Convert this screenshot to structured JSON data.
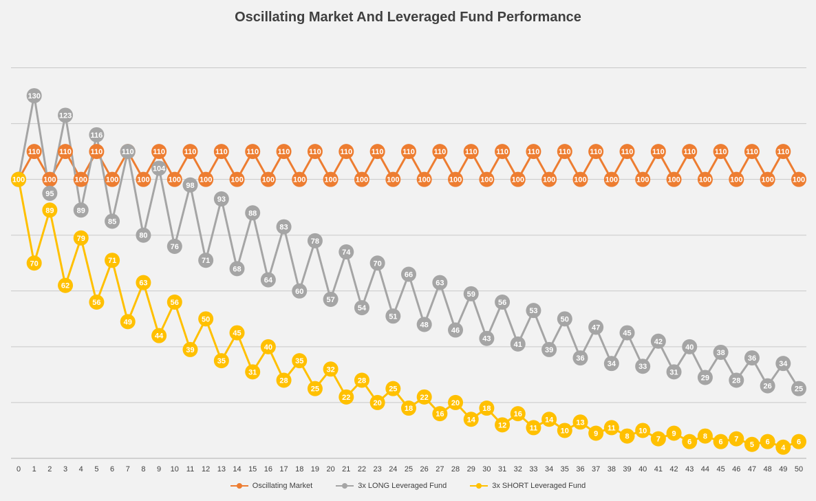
{
  "chart_data": {
    "type": "line",
    "title": "Oscillating Market And Leveraged Fund Performance",
    "xlabel": "",
    "ylabel": "",
    "x": [
      0,
      1,
      2,
      3,
      4,
      5,
      6,
      7,
      8,
      9,
      10,
      11,
      12,
      13,
      14,
      15,
      16,
      17,
      18,
      19,
      20,
      21,
      22,
      23,
      24,
      25,
      26,
      27,
      28,
      29,
      30,
      31,
      32,
      33,
      34,
      35,
      36,
      37,
      38,
      39,
      40,
      41,
      42,
      43,
      44,
      45,
      46,
      47,
      48,
      49,
      50
    ],
    "ylim": [
      0,
      150
    ],
    "grid": true,
    "legend_position": "bottom",
    "series": [
      {
        "name": "Oscillating Market",
        "color": "#ed7d31",
        "values": [
          100,
          110,
          100,
          110,
          100,
          110,
          100,
          110,
          100,
          110,
          100,
          110,
          100,
          110,
          100,
          110,
          100,
          110,
          100,
          110,
          100,
          110,
          100,
          110,
          100,
          110,
          100,
          110,
          100,
          110,
          100,
          110,
          100,
          110,
          100,
          110,
          100,
          110,
          100,
          110,
          100,
          110,
          100,
          110,
          100,
          110,
          100,
          110,
          100,
          110,
          100
        ]
      },
      {
        "name": "3x LONG Leveraged Fund",
        "color": "#a5a5a5",
        "values": [
          100,
          130,
          95,
          123,
          89,
          116,
          85,
          110,
          80,
          104,
          76,
          98,
          71,
          93,
          68,
          88,
          64,
          83,
          60,
          78,
          57,
          74,
          54,
          70,
          51,
          66,
          48,
          63,
          46,
          59,
          43,
          56,
          41,
          53,
          39,
          50,
          36,
          47,
          34,
          45,
          33,
          42,
          31,
          40,
          29,
          38,
          28,
          36,
          26,
          34,
          25
        ]
      },
      {
        "name": "3x SHORT Leveraged Fund",
        "color": "#ffc000",
        "values": [
          100,
          70,
          89,
          62,
          79,
          56,
          71,
          49,
          63,
          44,
          56,
          39,
          50,
          35,
          45,
          31,
          40,
          28,
          35,
          25,
          32,
          22,
          28,
          20,
          25,
          18,
          22,
          16,
          20,
          14,
          18,
          12,
          16,
          11,
          14,
          10,
          13,
          9,
          11,
          8,
          10,
          7,
          9,
          6,
          8,
          6,
          7,
          5,
          6,
          4,
          6
        ]
      }
    ]
  }
}
